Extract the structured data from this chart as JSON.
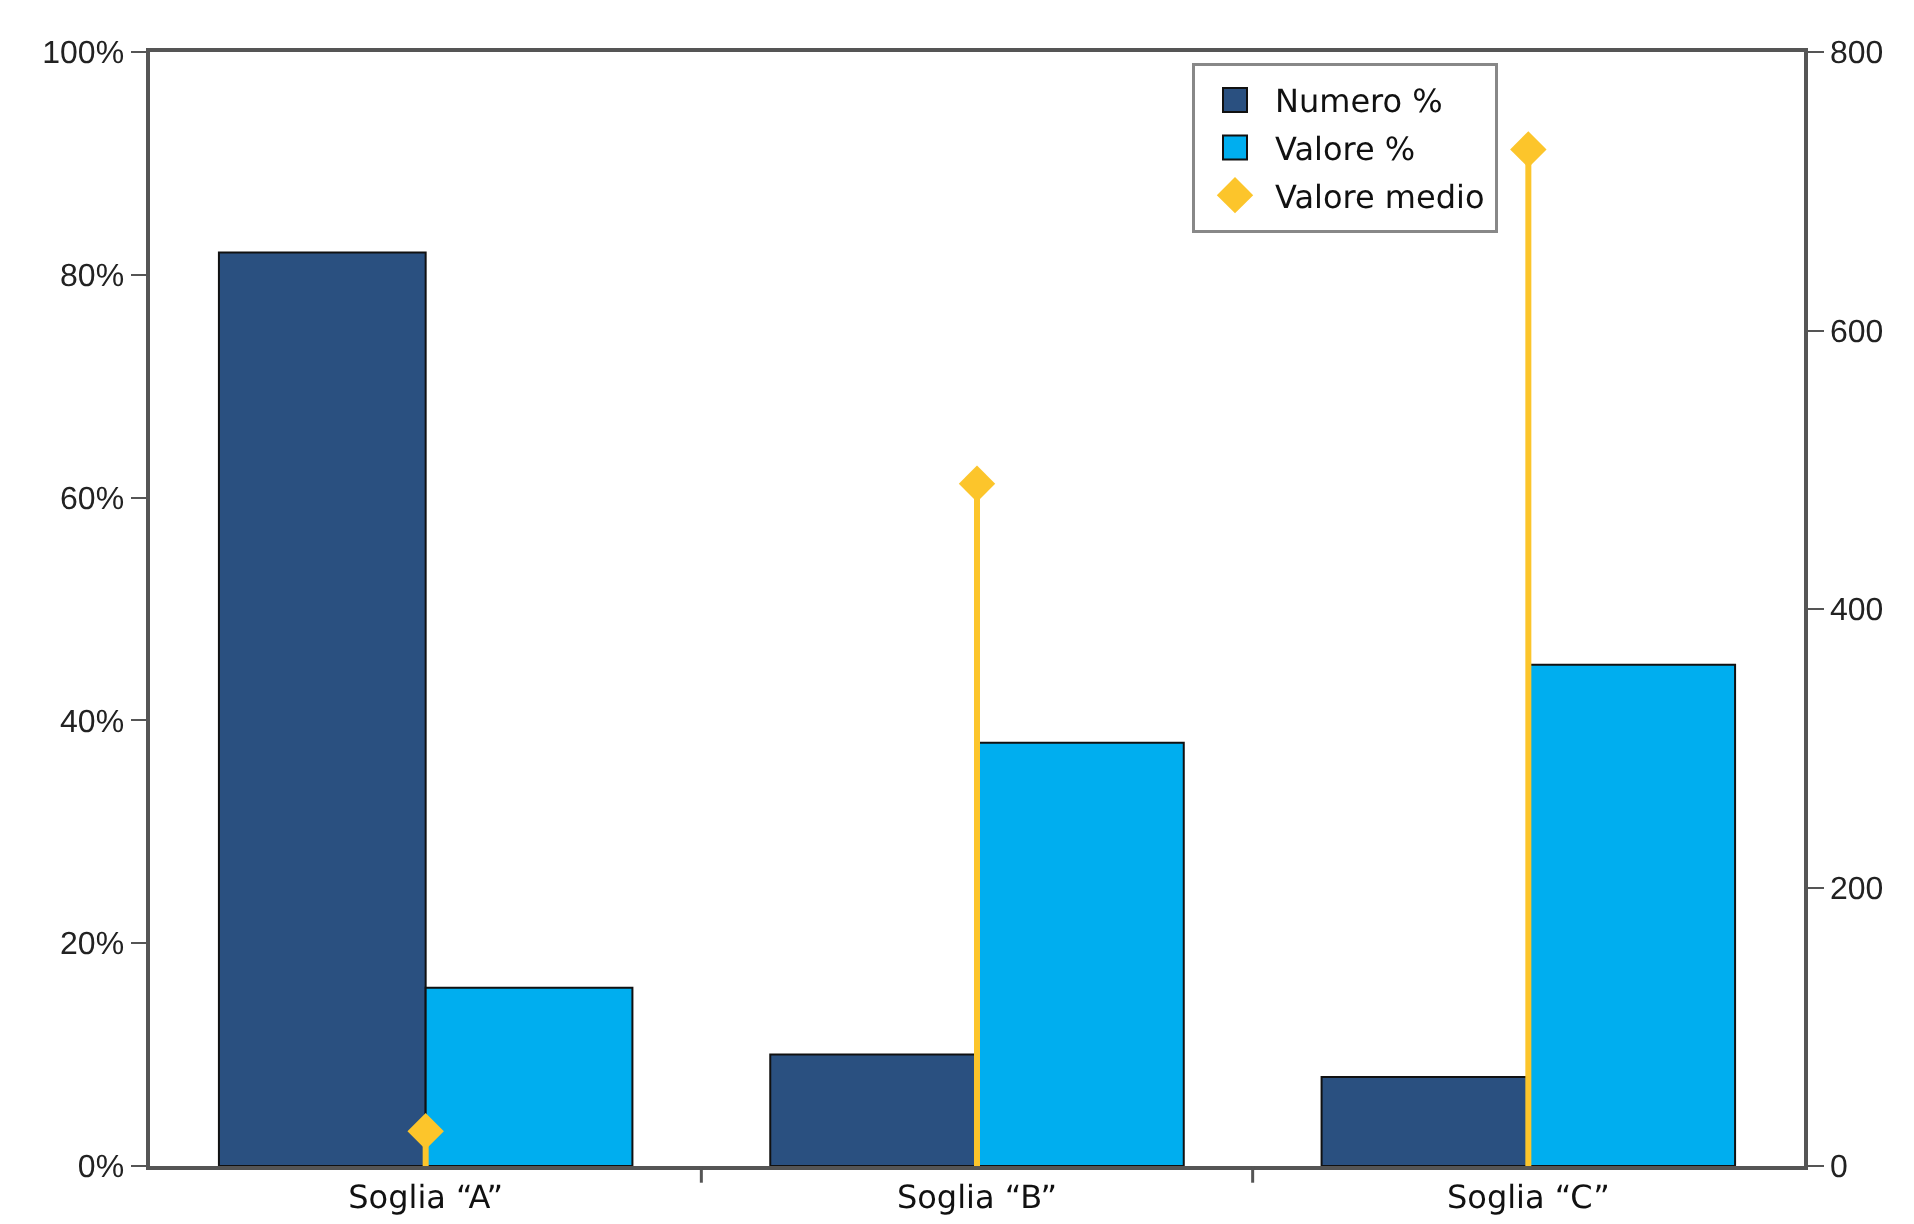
{
  "chart_data": {
    "type": "bar",
    "categories": [
      "Soglia “A”",
      "Soglia “B”",
      "Soglia “C”"
    ],
    "series": [
      {
        "name": "Numero %",
        "color": "#2a5080",
        "values": [
          82,
          10,
          8
        ]
      },
      {
        "name": "Valore %",
        "color": "#00aeef",
        "values": [
          16,
          38,
          45
        ]
      },
      {
        "name": "Valore medio",
        "type": "lollipop",
        "axis": "y2",
        "color": "#fcc52b",
        "values": [
          25,
          490,
          730
        ]
      }
    ],
    "ylim": [
      0,
      100
    ],
    "yticks": [
      {
        "value": 0,
        "label": "0%"
      },
      {
        "value": 20,
        "label": "20%"
      },
      {
        "value": 40,
        "label": "40%"
      },
      {
        "value": 60,
        "label": "60%"
      },
      {
        "value": 80,
        "label": "80%"
      },
      {
        "value": 100,
        "label": "100%"
      }
    ],
    "y2lim": [
      0,
      800
    ],
    "y2ticks": [
      0,
      200,
      400,
      600,
      800
    ],
    "grid": false,
    "legend": "top right",
    "marker": "diamond"
  }
}
